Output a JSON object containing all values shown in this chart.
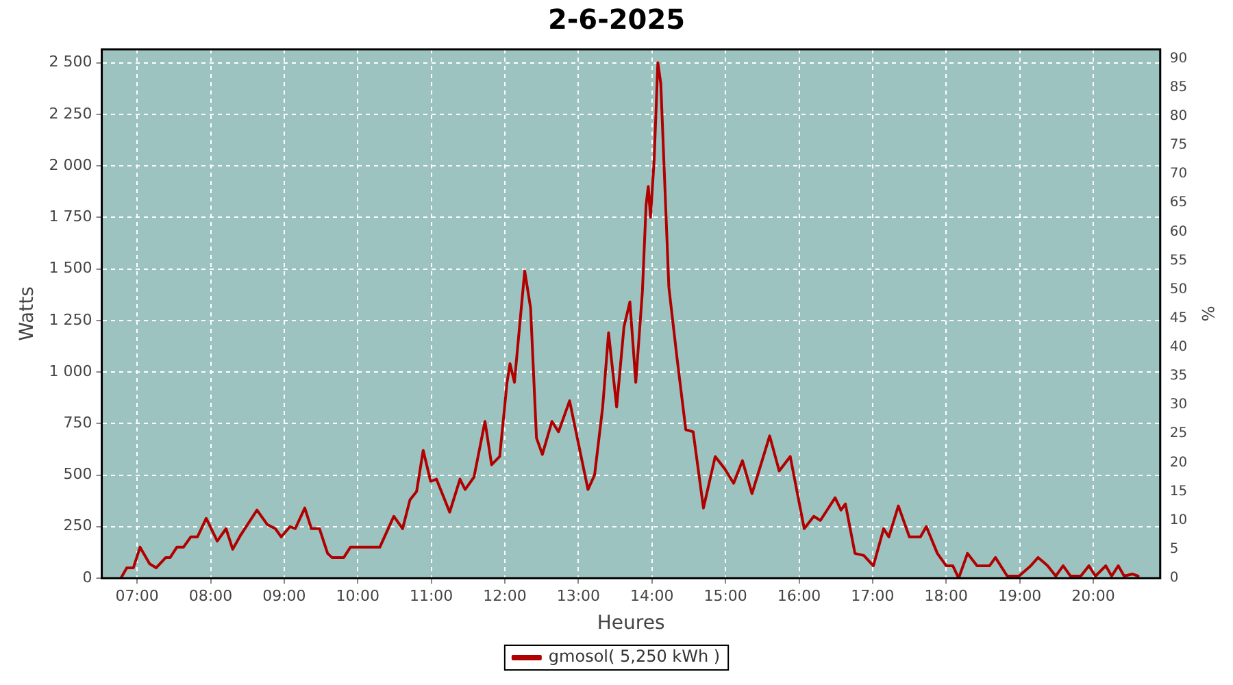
{
  "chart_data": {
    "type": "line",
    "title": "2-6-2025",
    "xlabel": "Heures",
    "ylabel": "Watts",
    "y2label": "%",
    "xlim": [
      6.52,
      20.91
    ],
    "xticks": [
      {
        "value": 7,
        "label": "07:00"
      },
      {
        "value": 8,
        "label": "08:00"
      },
      {
        "value": 9,
        "label": "09:00"
      },
      {
        "value": 10,
        "label": "10:00"
      },
      {
        "value": 11,
        "label": "11:00"
      },
      {
        "value": 12,
        "label": "12:00"
      },
      {
        "value": 13,
        "label": "13:00"
      },
      {
        "value": 14,
        "label": "14:00"
      },
      {
        "value": 15,
        "label": "15:00"
      },
      {
        "value": 16,
        "label": "16:00"
      },
      {
        "value": 17,
        "label": "17:00"
      },
      {
        "value": 18,
        "label": "18:00"
      },
      {
        "value": 19,
        "label": "19:00"
      },
      {
        "value": 20,
        "label": "20:00"
      }
    ],
    "ylim": [
      0,
      2565
    ],
    "yticks": [
      0,
      250,
      500,
      750,
      {
        "value": 1000,
        "label": "1 000"
      },
      {
        "value": 1250,
        "label": "1 250"
      },
      {
        "value": 1500,
        "label": "1 500"
      },
      {
        "value": 1750,
        "label": "1 750"
      },
      {
        "value": 2000,
        "label": "2 000"
      },
      {
        "value": 2250,
        "label": "2 250"
      },
      {
        "value": 2500,
        "label": "2 500"
      }
    ],
    "y2lim": [
      0,
      91.6
    ],
    "y2ticks": [
      0,
      5,
      10,
      15,
      20,
      25,
      30,
      35,
      40,
      45,
      50,
      55,
      60,
      65,
      70,
      75,
      80,
      85,
      90
    ],
    "grid": true,
    "legend": "bottom",
    "marker": "none",
    "line_style": "solid",
    "series": [
      {
        "name": "gmosol( 5,250 kWh )",
        "color": "#b00000",
        "x": [
          6.78,
          6.86,
          6.95,
          7.04,
          7.17,
          7.26,
          7.39,
          7.45,
          7.54,
          7.63,
          7.73,
          7.82,
          7.94,
          8.09,
          8.21,
          8.3,
          8.41,
          8.63,
          8.77,
          8.88,
          8.96,
          9.08,
          9.15,
          9.28,
          9.37,
          9.48,
          9.59,
          9.65,
          9.81,
          9.9,
          10.3,
          10.49,
          10.61,
          10.71,
          10.8,
          10.89,
          10.99,
          11.07,
          11.25,
          11.39,
          11.46,
          11.58,
          11.73,
          11.82,
          11.93,
          12.03,
          12.07,
          12.13,
          12.27,
          12.35,
          12.43,
          12.51,
          12.64,
          12.73,
          12.88,
          13.13,
          13.22,
          13.33,
          13.41,
          13.52,
          13.62,
          13.7,
          13.78,
          13.87,
          13.92,
          13.95,
          13.98,
          14.03,
          14.08,
          14.12,
          14.19,
          14.23,
          14.34,
          14.46,
          14.56,
          14.7,
          14.86,
          14.99,
          15.11,
          15.23,
          15.36,
          15.6,
          15.73,
          15.88,
          16.07,
          16.2,
          16.29,
          16.49,
          16.57,
          16.63,
          16.76,
          16.88,
          17.01,
          17.15,
          17.22,
          17.35,
          17.5,
          17.65,
          17.73,
          17.88,
          18.0,
          18.09,
          18.17,
          18.29,
          18.42,
          18.59,
          18.67,
          18.83,
          18.99,
          19.15,
          19.25,
          19.38,
          19.49,
          19.59,
          19.69,
          19.83,
          19.94,
          20.03,
          20.17,
          20.25,
          20.34,
          20.42,
          20.53,
          20.61
        ],
        "values": [
          0,
          50,
          50,
          150,
          70,
          50,
          100,
          100,
          150,
          150,
          200,
          200,
          290,
          180,
          240,
          140,
          210,
          330,
          260,
          240,
          200,
          250,
          240,
          340,
          240,
          240,
          120,
          100,
          100,
          150,
          150,
          300,
          240,
          380,
          420,
          620,
          470,
          480,
          320,
          480,
          430,
          490,
          760,
          550,
          590,
          950,
          1040,
          950,
          1490,
          1310,
          680,
          600,
          760,
          710,
          860,
          430,
          500,
          830,
          1190,
          830,
          1220,
          1340,
          950,
          1390,
          1810,
          1900,
          1750,
          2030,
          2500,
          2400,
          1770,
          1410,
          1070,
          720,
          710,
          340,
          590,
          530,
          460,
          570,
          410,
          690,
          520,
          590,
          240,
          300,
          280,
          390,
          330,
          360,
          120,
          110,
          60,
          240,
          200,
          350,
          200,
          200,
          250,
          120,
          60,
          60,
          0,
          120,
          60,
          60,
          100,
          10,
          10,
          60,
          100,
          60,
          10,
          60,
          10,
          10,
          60,
          10,
          60,
          10,
          60,
          10,
          20,
          10
        ]
      }
    ]
  }
}
